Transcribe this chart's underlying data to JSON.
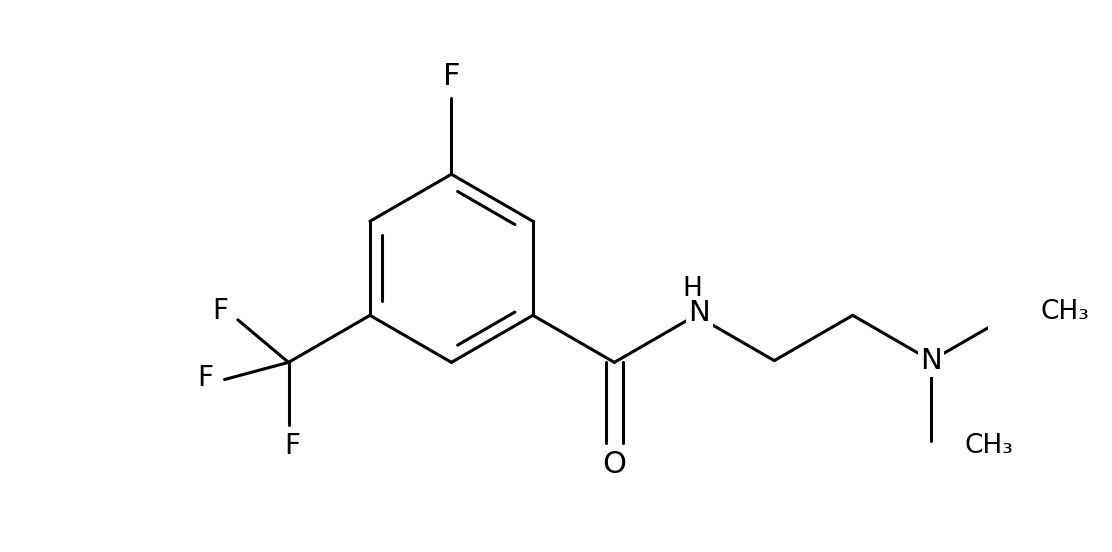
{
  "background": "#ffffff",
  "line_color": "#000000",
  "lw": 2.2,
  "fs": 20,
  "figsize": [
    11.12,
    5.52
  ],
  "dpi": 100,
  "xlim": [
    -0.5,
    11.5
  ],
  "ylim": [
    -0.3,
    5.8
  ]
}
